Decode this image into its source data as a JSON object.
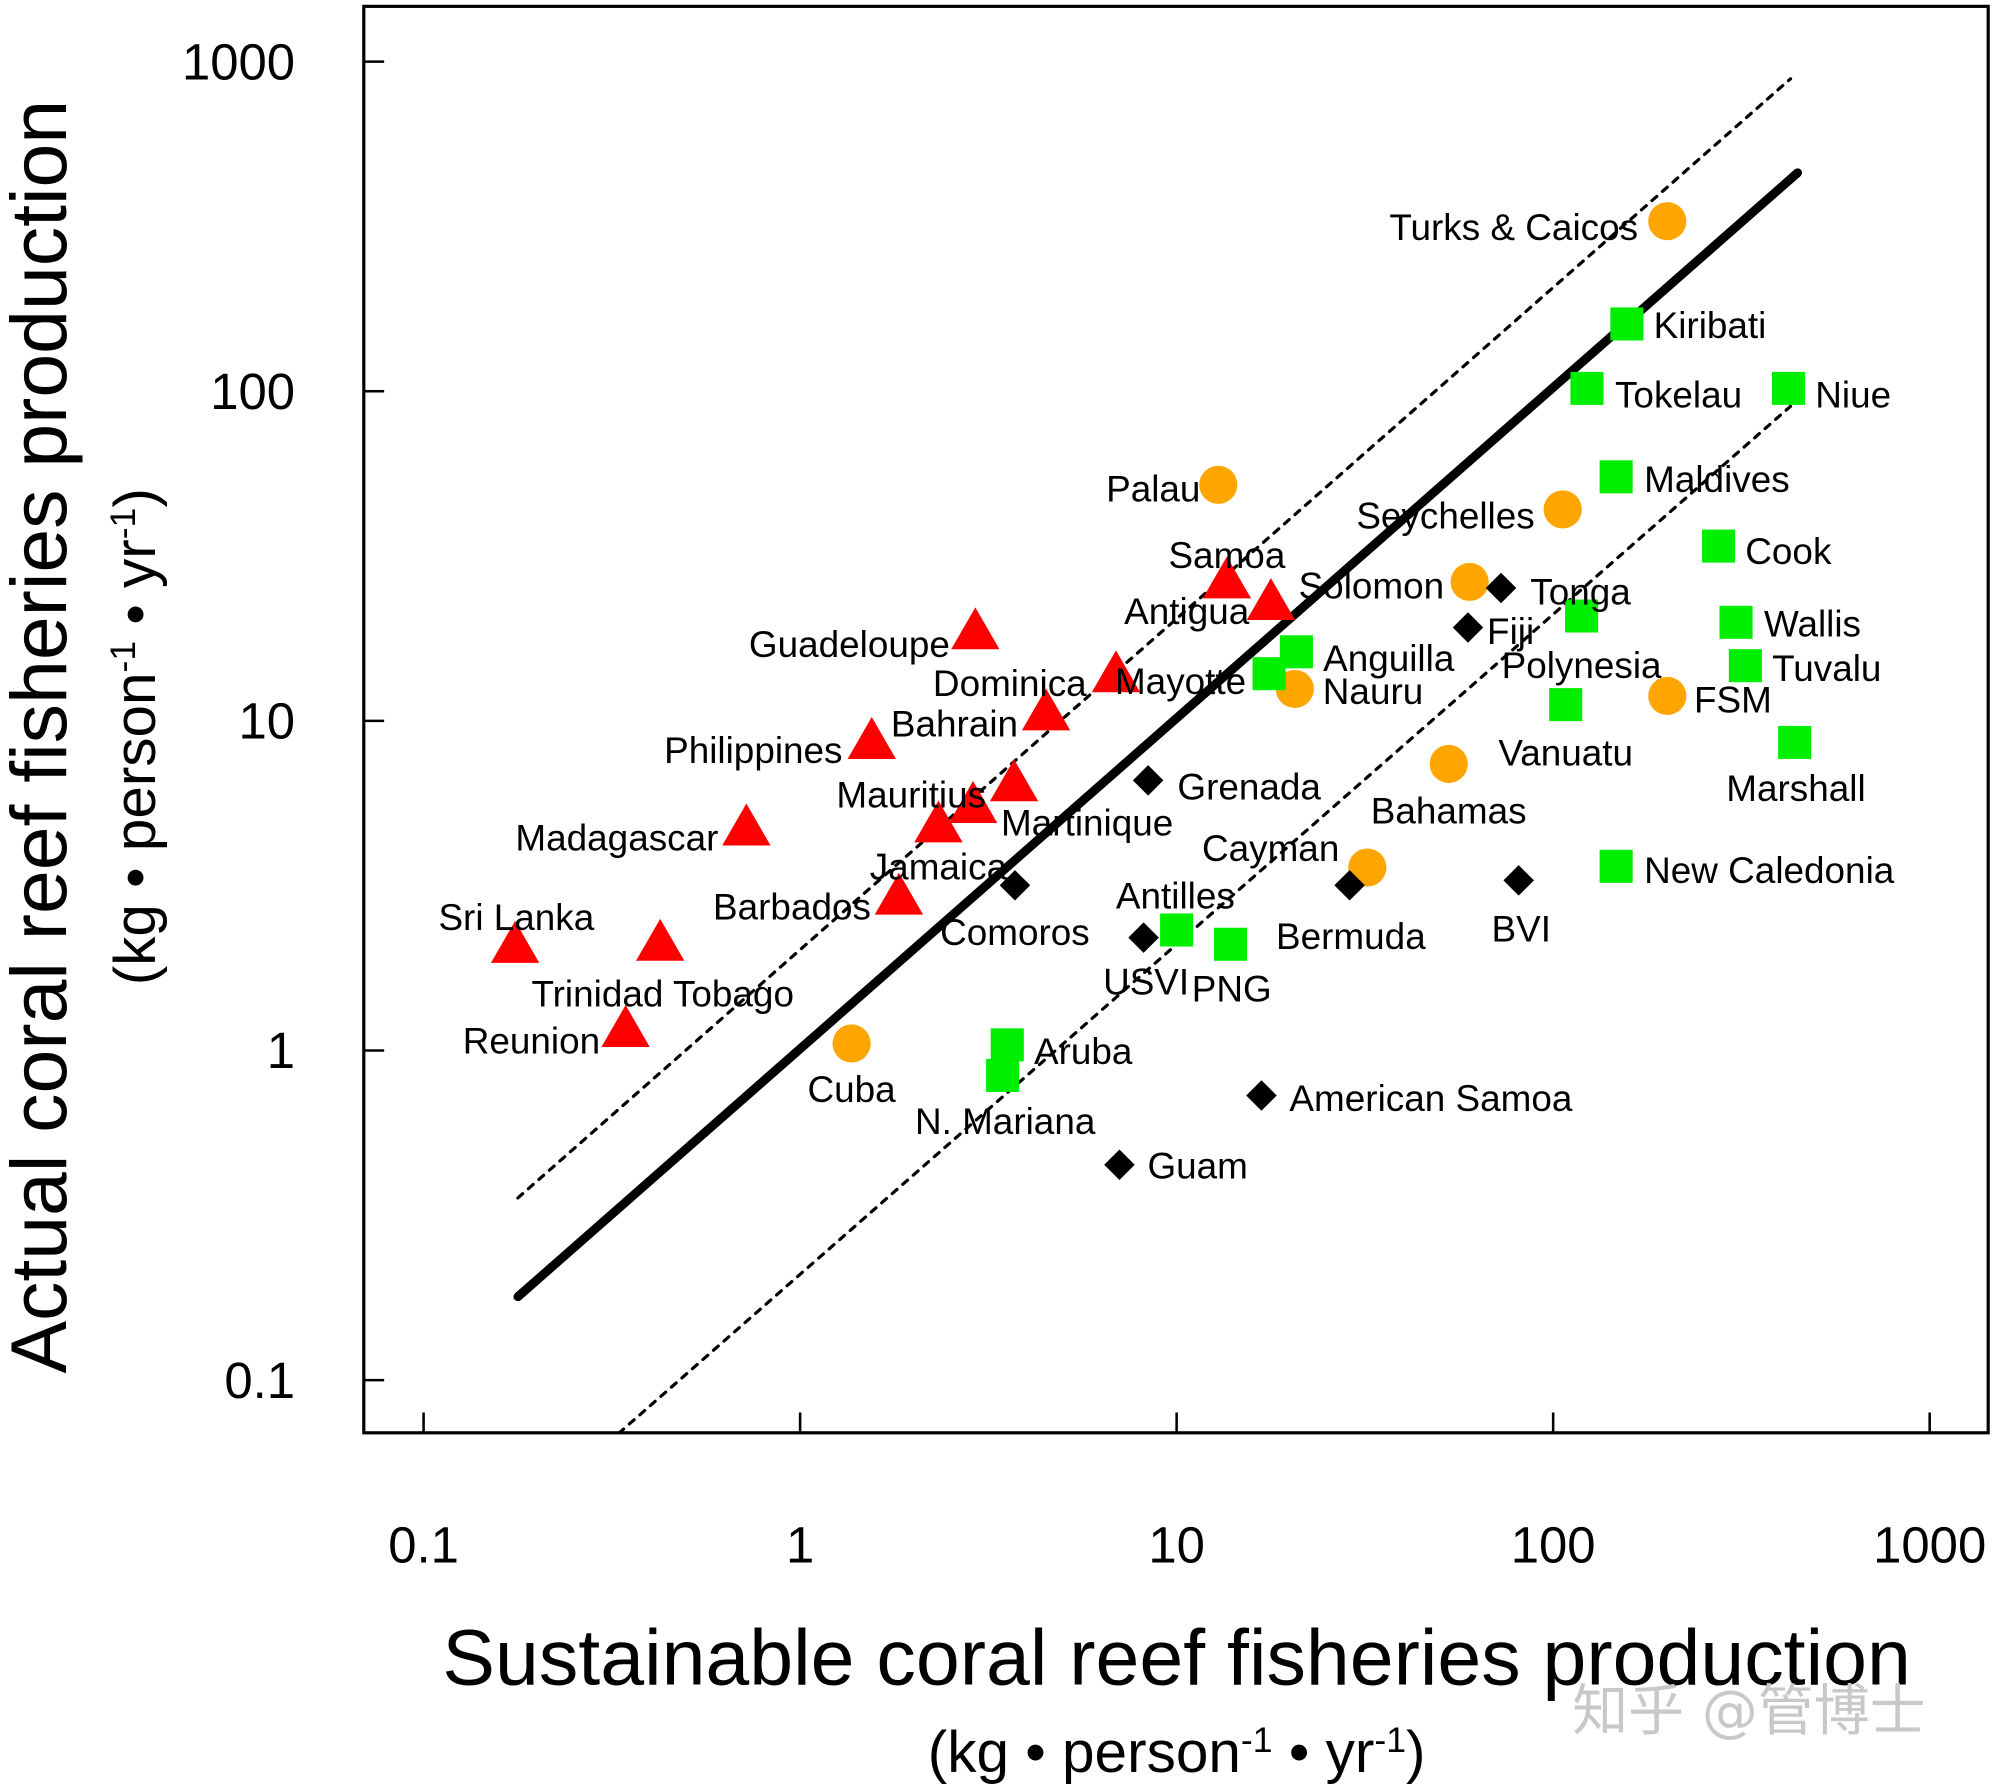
{
  "chart_data": {
    "type": "scatter",
    "xscale": "log",
    "yscale": "log",
    "xlim": [
      0.07,
      1500
    ],
    "ylim": [
      0.085,
      1500
    ],
    "xticks": [
      "0.1",
      "1",
      "10",
      "100",
      "1000"
    ],
    "yticks": [
      "0.1",
      "1",
      "10",
      "100",
      "1000"
    ],
    "xlabel": "Sustainable coral reef fisheries production",
    "xlabel_units": [
      "(kg • person",
      "-1",
      " • yr",
      "-1",
      ")"
    ],
    "ylabel": "Actual coral reef fisheries production",
    "ylabel_units": [
      "(kg • person",
      "-1",
      " • yr",
      "-1",
      ")"
    ],
    "grid": false,
    "marker_colors": {
      "triangle": "#ff0000",
      "circle": "#ffa500",
      "square": "#00ee00",
      "diamond": "#000000"
    },
    "lines": [
      {
        "style": "solid",
        "x": [
          0.178,
          446
        ],
        "y": [
          0.179,
          460
        ]
      },
      {
        "style": "dotted",
        "x": [
          0.178,
          427
        ],
        "y": [
          0.357,
          887
        ]
      },
      {
        "style": "dotted",
        "x": [
          0.33,
          427
        ],
        "y": [
          0.069,
          90
        ]
      }
    ],
    "points": [
      {
        "label": "Sri Lanka",
        "marker": "triangle",
        "x": 0.175,
        "y": 2.07
      },
      {
        "label": "Trinidad Tobago",
        "marker": "triangle",
        "x": 0.425,
        "y": 2.1
      },
      {
        "label": "Reunion",
        "marker": "triangle",
        "x": 0.344,
        "y": 1.15
      },
      {
        "label": "Madagascar",
        "marker": "triangle",
        "x": 0.72,
        "y": 4.7
      },
      {
        "label": "Jamaica",
        "marker": "triangle",
        "x": 2.33,
        "y": 4.8
      },
      {
        "label": "Martinique",
        "marker": "triangle",
        "x": 2.88,
        "y": 5.5
      },
      {
        "label": "Mauritius",
        "marker": "triangle",
        "x": 3.7,
        "y": 6.4
      },
      {
        "label": "Barbados",
        "marker": "triangle",
        "x": 1.83,
        "y": 2.9
      },
      {
        "label": "Philippines",
        "marker": "triangle",
        "x": 1.55,
        "y": 8.6
      },
      {
        "label": "Bahrain",
        "marker": "triangle",
        "x": 4.5,
        "y": 10.5
      },
      {
        "label": "Guadeloupe",
        "marker": "triangle",
        "x": 2.92,
        "y": 18.5
      },
      {
        "label": "Dominica",
        "marker": "triangle",
        "x": 6.9,
        "y": 13.7
      },
      {
        "label": "Samoa",
        "marker": "triangle",
        "x": 13.6,
        "y": 26.4
      },
      {
        "label": "Antigua",
        "marker": "triangle",
        "x": 17.8,
        "y": 22.7
      },
      {
        "label": "Turks & Caicos",
        "marker": "circle",
        "x": 201,
        "y": 328
      },
      {
        "label": "Palau",
        "marker": "circle",
        "x": 12.9,
        "y": 52
      },
      {
        "label": "Seychelles",
        "marker": "circle",
        "x": 106,
        "y": 43.8
      },
      {
        "label": "Solomon",
        "marker": "circle",
        "x": 60,
        "y": 26.4
      },
      {
        "label": "Nauru",
        "marker": "circle",
        "x": 20.6,
        "y": 12.5
      },
      {
        "label": "FSM",
        "marker": "circle",
        "x": 201,
        "y": 11.9
      },
      {
        "label": "Bahamas",
        "marker": "circle",
        "x": 52.8,
        "y": 7.4
      },
      {
        "label": "Cayman",
        "marker": "circle",
        "x": 32.1,
        "y": 3.59
      },
      {
        "label": "Cuba",
        "marker": "circle",
        "x": 1.37,
        "y": 1.05
      },
      {
        "label": "Kiribati",
        "marker": "square",
        "x": 157,
        "y": 160
      },
      {
        "label": "Tokelau",
        "marker": "square",
        "x": 123,
        "y": 102
      },
      {
        "label": "Niue",
        "marker": "square",
        "x": 422,
        "y": 102
      },
      {
        "label": "Maldives",
        "marker": "square",
        "x": 147,
        "y": 55
      },
      {
        "label": "Cook",
        "marker": "square",
        "x": 275,
        "y": 33.9
      },
      {
        "label": "Wallis",
        "marker": "square",
        "x": 306,
        "y": 19.9
      },
      {
        "label": "Polynesia",
        "marker": "square",
        "x": 119,
        "y": 20.8
      },
      {
        "label": "Tuvalu",
        "marker": "square",
        "x": 324,
        "y": 14.7
      },
      {
        "label": "Vanuatu",
        "marker": "square",
        "x": 108,
        "y": 11.2
      },
      {
        "label": "Marshall",
        "marker": "square",
        "x": 438,
        "y": 8.6
      },
      {
        "label": "New  Caledonia",
        "marker": "square",
        "x": 147,
        "y": 3.62
      },
      {
        "label": "Anguilla",
        "marker": "square",
        "x": 20.8,
        "y": 16.2
      },
      {
        "label": "Mayotte",
        "marker": "square",
        "x": 17.6,
        "y": 13.9
      },
      {
        "label": "Antilles",
        "marker": "square",
        "x": 10,
        "y": 2.32
      },
      {
        "label": "PNG",
        "marker": "square",
        "x": 13.9,
        "y": 2.1
      },
      {
        "label": "Aruba",
        "marker": "square",
        "x": 3.55,
        "y": 1.04
      },
      {
        "label": "N. Mariana",
        "marker": "square",
        "x": 3.45,
        "y": 0.84
      },
      {
        "label": "Tonga",
        "marker": "diamond",
        "x": 72.7,
        "y": 25.3
      },
      {
        "label": "Fiji",
        "marker": "diamond",
        "x": 59.4,
        "y": 19.2
      },
      {
        "label": "Grenada",
        "marker": "diamond",
        "x": 8.4,
        "y": 6.6
      },
      {
        "label": "Comoros",
        "marker": "diamond",
        "x": 3.72,
        "y": 3.17
      },
      {
        "label": "Bermuda",
        "marker": "diamond",
        "x": 28.8,
        "y": 3.17
      },
      {
        "label": "BVI",
        "marker": "diamond",
        "x": 81,
        "y": 3.28
      },
      {
        "label": "USVI",
        "marker": "diamond",
        "x": 8.17,
        "y": 2.2
      },
      {
        "label": "American Samoa",
        "marker": "diamond",
        "x": 16.8,
        "y": 0.73
      },
      {
        "label": "Guam",
        "marker": "diamond",
        "x": 7.05,
        "y": 0.45
      }
    ]
  },
  "watermark": "知乎 @管博士"
}
